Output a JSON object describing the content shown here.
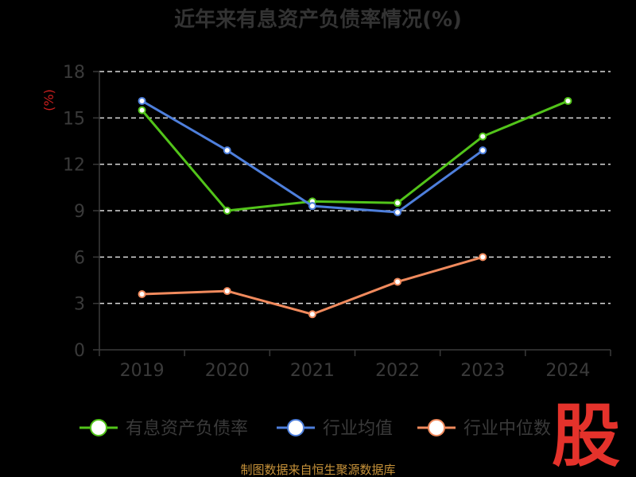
{
  "chart_data": {
    "type": "line",
    "title": "近年来有息资产负债率情况(%)",
    "ylabel": "(%)",
    "xlabel": "",
    "categories": [
      "2019",
      "2020",
      "2021",
      "2022",
      "2023",
      "2024"
    ],
    "y_ticks": [
      "0",
      "3",
      "6",
      "9",
      "12",
      "15",
      "18"
    ],
    "ylim": [
      0,
      18
    ],
    "grid": true,
    "legend_position": "bottom",
    "series": [
      {
        "name": "有息资产负债率",
        "color": "#52c41a",
        "values": [
          15.5,
          9.0,
          9.6,
          9.5,
          13.8,
          16.1
        ]
      },
      {
        "name": "行业均值",
        "color": "#4e7fdc",
        "values": [
          16.1,
          12.9,
          9.3,
          8.9,
          12.9,
          null
        ]
      },
      {
        "name": "行业中位数",
        "color": "#f08a5d",
        "values": [
          3.6,
          3.8,
          2.3,
          4.4,
          6.0,
          null
        ]
      }
    ]
  },
  "source": "制图数据来自恒生聚源数据库",
  "logo_text": "股"
}
